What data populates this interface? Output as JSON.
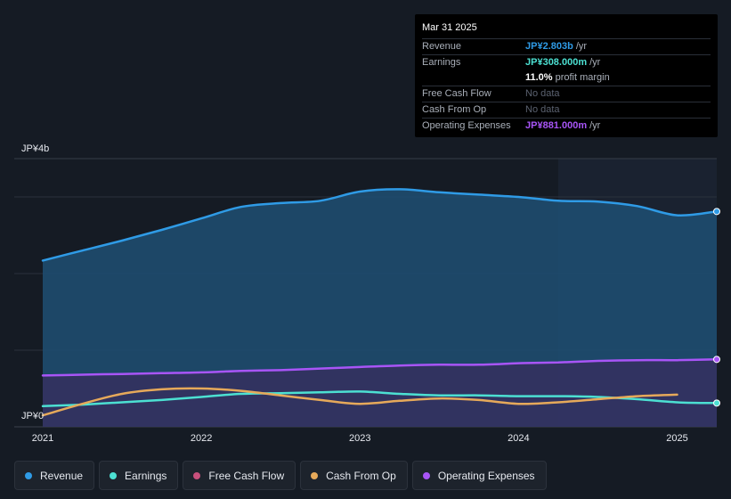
{
  "tooltip": {
    "date": "Mar 31 2025",
    "rows": [
      {
        "label": "Revenue",
        "value": "JP¥2.803b",
        "unit": "/yr",
        "color": "#2f9be6"
      },
      {
        "label": "Earnings",
        "value": "JP¥308.000m",
        "unit": "/yr",
        "color": "#4ce0d2"
      },
      {
        "label": "",
        "value": "11.0%",
        "unit": "profit margin",
        "color": "#ffffff"
      },
      {
        "label": "Free Cash Flow",
        "value": "No data",
        "unit": "",
        "color": ""
      },
      {
        "label": "Cash From Op",
        "value": "No data",
        "unit": "",
        "color": ""
      },
      {
        "label": "Operating Expenses",
        "value": "JP¥881.000m",
        "unit": "/yr",
        "color": "#a855f7"
      }
    ]
  },
  "legend": [
    {
      "label": "Revenue",
      "color": "#2f9be6"
    },
    {
      "label": "Earnings",
      "color": "#4ce0d2"
    },
    {
      "label": "Free Cash Flow",
      "color": "#c8507c"
    },
    {
      "label": "Cash From Op",
      "color": "#e6a95a"
    },
    {
      "label": "Operating Expenses",
      "color": "#a855f7"
    }
  ],
  "chart_data": {
    "type": "area",
    "ylabel_top": "JP¥4b",
    "ylabel_bottom": "JP¥0",
    "ylim": [
      0,
      3.5
    ],
    "xlim": [
      2021.0,
      2025.25
    ],
    "x_ticks": [
      {
        "value": 2021,
        "label": "2021"
      },
      {
        "value": 2022,
        "label": "2022"
      },
      {
        "value": 2023,
        "label": "2023"
      },
      {
        "value": 2024,
        "label": "2024"
      },
      {
        "value": 2025,
        "label": "2025"
      }
    ],
    "highlight_from": 2024.25,
    "unit": "JP¥ billions",
    "series": [
      {
        "name": "Revenue",
        "color": "#2f9be6",
        "fill": true,
        "points": [
          [
            2021.0,
            2.17
          ],
          [
            2021.25,
            2.3
          ],
          [
            2021.5,
            2.43
          ],
          [
            2021.75,
            2.57
          ],
          [
            2022.0,
            2.72
          ],
          [
            2022.25,
            2.87
          ],
          [
            2022.5,
            2.92
          ],
          [
            2022.75,
            2.95
          ],
          [
            2023.0,
            3.07
          ],
          [
            2023.25,
            3.1
          ],
          [
            2023.5,
            3.06
          ],
          [
            2023.75,
            3.03
          ],
          [
            2024.0,
            3.0
          ],
          [
            2024.25,
            2.95
          ],
          [
            2024.5,
            2.94
          ],
          [
            2024.75,
            2.88
          ],
          [
            2025.0,
            2.76
          ],
          [
            2025.25,
            2.81
          ]
        ]
      },
      {
        "name": "Earnings",
        "color": "#4ce0d2",
        "fill": false,
        "points": [
          [
            2021.0,
            0.27
          ],
          [
            2021.25,
            0.29
          ],
          [
            2021.5,
            0.32
          ],
          [
            2021.75,
            0.35
          ],
          [
            2022.0,
            0.39
          ],
          [
            2022.25,
            0.43
          ],
          [
            2022.5,
            0.44
          ],
          [
            2022.75,
            0.45
          ],
          [
            2023.0,
            0.46
          ],
          [
            2023.25,
            0.43
          ],
          [
            2023.5,
            0.41
          ],
          [
            2023.75,
            0.41
          ],
          [
            2024.0,
            0.4
          ],
          [
            2024.25,
            0.4
          ],
          [
            2024.5,
            0.39
          ],
          [
            2024.75,
            0.36
          ],
          [
            2025.0,
            0.32
          ],
          [
            2025.25,
            0.31
          ]
        ]
      },
      {
        "name": "Cash From Op",
        "color": "#e6a95a",
        "fill": false,
        "points": [
          [
            2021.0,
            0.15
          ],
          [
            2021.25,
            0.3
          ],
          [
            2021.5,
            0.43
          ],
          [
            2021.75,
            0.49
          ],
          [
            2022.0,
            0.5
          ],
          [
            2022.25,
            0.47
          ],
          [
            2022.5,
            0.41
          ],
          [
            2022.75,
            0.35
          ],
          [
            2023.0,
            0.3
          ],
          [
            2023.25,
            0.34
          ],
          [
            2023.5,
            0.37
          ],
          [
            2023.75,
            0.35
          ],
          [
            2024.0,
            0.3
          ],
          [
            2024.25,
            0.32
          ],
          [
            2024.5,
            0.36
          ],
          [
            2024.75,
            0.4
          ],
          [
            2025.0,
            0.42
          ]
        ]
      },
      {
        "name": "Operating Expenses",
        "color": "#a855f7",
        "fill": true,
        "points": [
          [
            2021.0,
            0.67
          ],
          [
            2021.25,
            0.68
          ],
          [
            2021.5,
            0.69
          ],
          [
            2021.75,
            0.7
          ],
          [
            2022.0,
            0.71
          ],
          [
            2022.25,
            0.73
          ],
          [
            2022.5,
            0.74
          ],
          [
            2022.75,
            0.76
          ],
          [
            2023.0,
            0.78
          ],
          [
            2023.25,
            0.8
          ],
          [
            2023.5,
            0.81
          ],
          [
            2023.75,
            0.81
          ],
          [
            2024.0,
            0.83
          ],
          [
            2024.25,
            0.84
          ],
          [
            2024.5,
            0.86
          ],
          [
            2024.75,
            0.87
          ],
          [
            2025.0,
            0.87
          ],
          [
            2025.25,
            0.88
          ]
        ]
      }
    ]
  }
}
